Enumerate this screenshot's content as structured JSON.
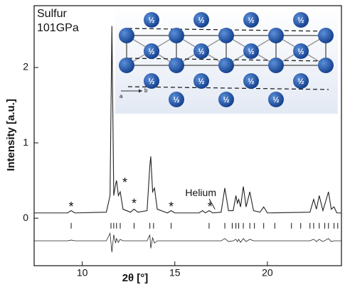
{
  "chart_data": {
    "type": "line",
    "sample_lines": [
      "Sulfur",
      "101GPa"
    ],
    "x_label": "2θ [°]",
    "y_label": "Intensity [a.u.]",
    "x": [
      7.4,
      9.2,
      9.4,
      9.6,
      11.3,
      11.5,
      11.6,
      11.7,
      11.8,
      11.85,
      11.95,
      12.05,
      12.2,
      12.6,
      12.8,
      13.0,
      13.5,
      13.65,
      13.7,
      13.8,
      13.9,
      14.05,
      14.6,
      14.8,
      15.0,
      16.3,
      16.5,
      16.65,
      16.85,
      17.05,
      17.5,
      17.7,
      17.9,
      18.15,
      18.3,
      18.38,
      18.45,
      18.55,
      18.7,
      18.85,
      19.05,
      19.25,
      19.6,
      19.8,
      20.0,
      22.3,
      22.5,
      22.65,
      22.8,
      23.0,
      23.3,
      23.45,
      23.6,
      23.75,
      24.0
    ],
    "series": [
      {
        "color": "#222222",
        "values": [
          0.07,
          0.07,
          0.1,
          0.07,
          0.08,
          0.3,
          2.55,
          0.3,
          0.45,
          0.5,
          0.3,
          0.35,
          0.12,
          0.08,
          0.12,
          0.08,
          0.1,
          0.7,
          0.82,
          0.35,
          0.4,
          0.12,
          0.07,
          0.1,
          0.07,
          0.07,
          0.1,
          0.07,
          0.1,
          0.07,
          0.08,
          0.4,
          0.1,
          0.1,
          0.3,
          0.2,
          0.25,
          0.15,
          0.42,
          0.15,
          0.35,
          0.1,
          0.08,
          0.15,
          0.07,
          0.08,
          0.25,
          0.12,
          0.3,
          0.1,
          0.35,
          0.12,
          0.15,
          0.07,
          0.07
        ]
      },
      {
        "color": "#222222",
        "values": [
          -0.3,
          -0.3,
          -0.29,
          -0.3,
          -0.3,
          -0.2,
          -0.45,
          -0.22,
          -0.33,
          -0.27,
          -0.32,
          -0.28,
          -0.3,
          -0.3,
          -0.3,
          -0.3,
          -0.3,
          -0.22,
          -0.4,
          -0.26,
          -0.33,
          -0.3,
          -0.3,
          -0.3,
          -0.3,
          -0.3,
          -0.3,
          -0.3,
          -0.3,
          -0.3,
          -0.3,
          -0.27,
          -0.31,
          -0.3,
          -0.28,
          -0.31,
          -0.28,
          -0.32,
          -0.27,
          -0.31,
          -0.28,
          -0.3,
          -0.3,
          -0.3,
          -0.3,
          -0.3,
          -0.28,
          -0.31,
          -0.28,
          -0.31,
          -0.27,
          -0.31,
          -0.3,
          -0.3,
          -0.3
        ]
      }
    ],
    "reflections": [
      9.4,
      11.55,
      11.7,
      11.85,
      12.05,
      12.8,
      13.65,
      13.85,
      14.8,
      16.85,
      17.7,
      18.1,
      18.3,
      18.45,
      18.7,
      19.05,
      19.3,
      19.8,
      20.4,
      21.3,
      21.8,
      22.3,
      22.5,
      22.8,
      23.1,
      23.3,
      23.6,
      23.8
    ],
    "reflection_level": -0.1,
    "annotations": [
      {
        "text": "*",
        "x": 9.4,
        "y": 0.18
      },
      {
        "text": "*",
        "x": 12.3,
        "y": 0.5
      },
      {
        "text": "*",
        "x": 12.8,
        "y": 0.22
      },
      {
        "text": "*",
        "x": 14.8,
        "y": 0.18
      },
      {
        "text": "*",
        "x": 16.9,
        "y": 0.18
      },
      {
        "text": "Helium",
        "x": 16.4,
        "y": 0.33
      }
    ],
    "inset": {
      "half": "½",
      "a": "a",
      "b": "b"
    },
    "xlim": [
      7.4,
      24
    ],
    "xticks": [
      10,
      15,
      20
    ],
    "ylim": [
      -0.63,
      2.82
    ],
    "yticks": [
      0,
      1,
      2
    ]
  }
}
